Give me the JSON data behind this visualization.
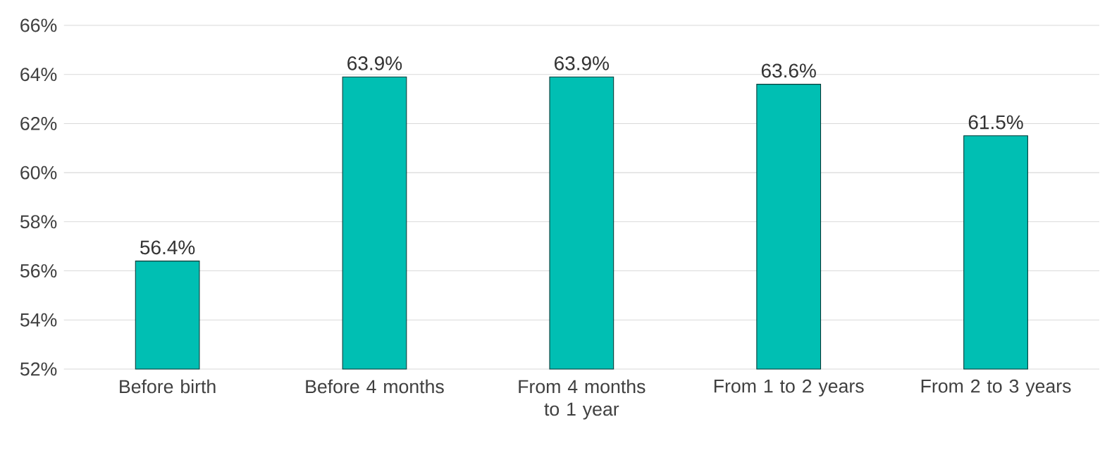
{
  "chart_data": {
    "type": "bar",
    "categories": [
      "Before birth",
      "Before 4 months",
      "From 4 months to 1 year",
      "From 1 to 2 years",
      "From 2 to 3 years"
    ],
    "values": [
      56.4,
      63.9,
      63.9,
      63.6,
      61.5
    ],
    "value_labels": [
      "56.4%",
      "63.9%",
      "63.9%",
      "63.6%",
      "61.5%"
    ],
    "color": "#00bfb3",
    "ylim": [
      52,
      66
    ],
    "yticks": [
      {
        "value": 52,
        "label": "52%"
      },
      {
        "value": 54,
        "label": "54%"
      },
      {
        "value": 56,
        "label": "56%"
      },
      {
        "value": 58,
        "label": "58%"
      },
      {
        "value": 60,
        "label": "60%"
      },
      {
        "value": 62,
        "label": "62%"
      },
      {
        "value": 64,
        "label": "64%"
      },
      {
        "value": 66,
        "label": "66%"
      }
    ],
    "grid": "y"
  }
}
